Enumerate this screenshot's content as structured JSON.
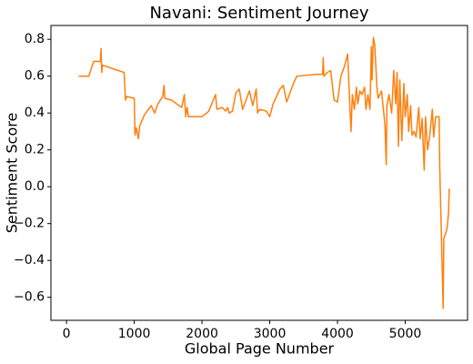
{
  "chart_data": {
    "type": "line",
    "title": "Navani: Sentiment Journey",
    "x_label": "Global Page Number",
    "y_label": "Sentiment Score",
    "x": [
      180,
      330,
      400,
      500,
      510,
      520,
      530,
      850,
      870,
      890,
      1000,
      1010,
      1030,
      1060,
      1080,
      1150,
      1250,
      1300,
      1350,
      1420,
      1440,
      1450,
      1550,
      1700,
      1740,
      1760,
      1780,
      1800,
      2000,
      2100,
      2200,
      2220,
      2300,
      2350,
      2380,
      2400,
      2450,
      2500,
      2550,
      2600,
      2700,
      2750,
      2800,
      2820,
      2850,
      2950,
      3000,
      3050,
      3150,
      3200,
      3250,
      3350,
      3400,
      3700,
      3780,
      3790,
      3800,
      3850,
      3900,
      3950,
      4000,
      4050,
      4100,
      4150,
      4180,
      4200,
      4220,
      4250,
      4280,
      4300,
      4330,
      4360,
      4400,
      4420,
      4450,
      4480,
      4500,
      4510,
      4530,
      4550,
      4580,
      4600,
      4650,
      4700,
      4720,
      4730,
      4760,
      4800,
      4830,
      4860,
      4880,
      4900,
      4920,
      4950,
      4980,
      5000,
      5030,
      5050,
      5080,
      5100,
      5130,
      5160,
      5200,
      5220,
      5250,
      5280,
      5300,
      5330,
      5360,
      5400,
      5420,
      5450,
      5500,
      5510,
      5530,
      5560,
      5570,
      5600,
      5620,
      5640,
      5650
    ],
    "series": [
      {
        "name": "Navani",
        "color": "#ff7f0e",
        "values": [
          0.6,
          0.6,
          0.68,
          0.68,
          0.75,
          0.62,
          0.66,
          0.62,
          0.47,
          0.49,
          0.48,
          0.28,
          0.32,
          0.26,
          0.33,
          0.39,
          0.44,
          0.4,
          0.45,
          0.49,
          0.55,
          0.48,
          0.47,
          0.43,
          0.5,
          0.38,
          0.43,
          0.38,
          0.38,
          0.41,
          0.5,
          0.42,
          0.43,
          0.41,
          0.43,
          0.4,
          0.41,
          0.51,
          0.53,
          0.42,
          0.52,
          0.44,
          0.53,
          0.4,
          0.42,
          0.41,
          0.38,
          0.45,
          0.53,
          0.55,
          0.46,
          0.56,
          0.6,
          0.61,
          0.61,
          0.7,
          0.6,
          0.62,
          0.63,
          0.47,
          0.46,
          0.6,
          0.65,
          0.72,
          0.46,
          0.3,
          0.5,
          0.42,
          0.54,
          0.45,
          0.52,
          0.5,
          0.54,
          0.42,
          0.5,
          0.42,
          0.76,
          0.58,
          0.81,
          0.77,
          0.55,
          0.48,
          0.52,
          0.34,
          0.12,
          0.44,
          0.5,
          0.4,
          0.63,
          0.45,
          0.62,
          0.22,
          0.58,
          0.25,
          0.56,
          0.38,
          0.5,
          0.3,
          0.44,
          0.28,
          0.3,
          0.27,
          0.43,
          0.26,
          0.37,
          0.09,
          0.38,
          0.2,
          0.27,
          0.42,
          0.27,
          0.38,
          0.38,
          0.1,
          -0.2,
          -0.66,
          -0.28,
          -0.25,
          -0.22,
          -0.14,
          -0.01
        ]
      }
    ],
    "xlim": [
      -230,
      5920
    ],
    "xticks": [
      0,
      1000,
      2000,
      3000,
      4000,
      5000
    ],
    "ylim": [
      -0.725,
      0.875
    ],
    "yticks": [
      {
        "value": -0.6,
        "label": "−0.6"
      },
      {
        "value": -0.4,
        "label": "−0.4"
      },
      {
        "value": -0.2,
        "label": "−0.2"
      },
      {
        "value": 0,
        "label": "0.0"
      },
      {
        "value": 0.2,
        "label": "0.2"
      },
      {
        "value": 0.4,
        "label": "0.4"
      },
      {
        "value": 0.6,
        "label": "0.6"
      },
      {
        "value": 0.8,
        "label": "0.8"
      }
    ],
    "grid": false
  }
}
